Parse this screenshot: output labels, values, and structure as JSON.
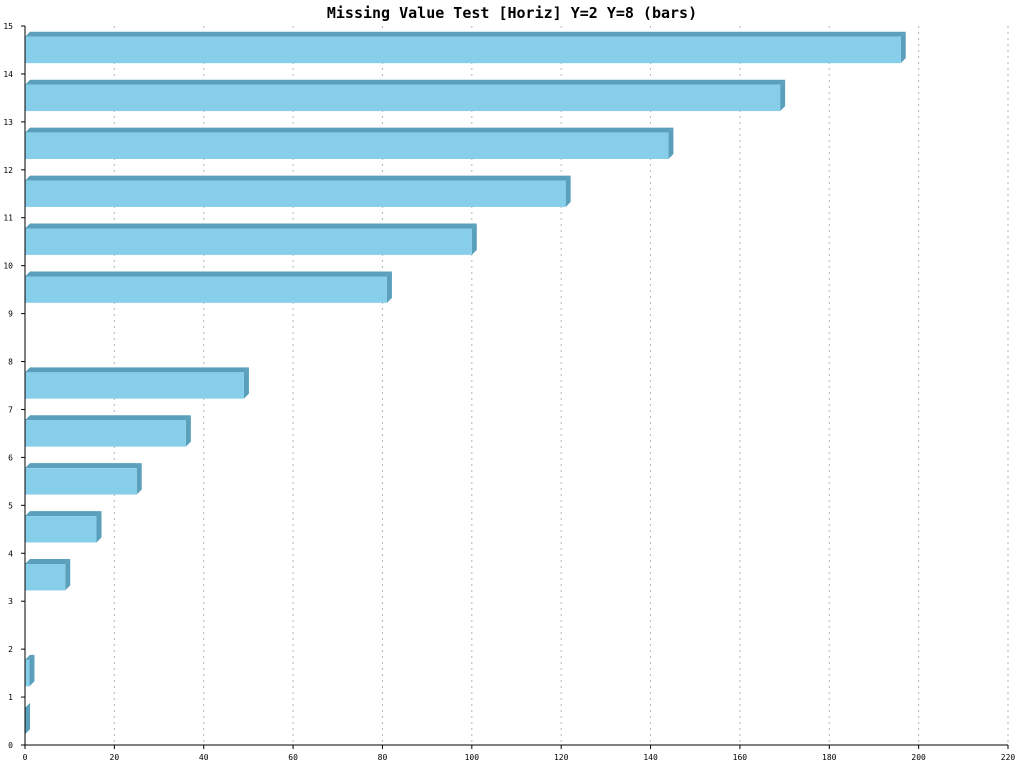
{
  "chart_data": {
    "type": "bar",
    "orientation": "horizontal",
    "title": "Missing Value Test [Horiz] Y=2 Y=8 (bars)",
    "xlabel": "",
    "ylabel": "",
    "xlim": [
      0,
      220
    ],
    "ylim": [
      0,
      15
    ],
    "xticks": [
      "0",
      "20",
      "40",
      "60",
      "80",
      "100",
      "120",
      "140",
      "160",
      "180",
      "200",
      "220"
    ],
    "yticks": [
      "0",
      "1",
      "2",
      "3",
      "4",
      "5",
      "6",
      "7",
      "8",
      "9",
      "10",
      "11",
      "12",
      "13",
      "14",
      "15"
    ],
    "grid": "vertical dotted",
    "categories": [
      0,
      1,
      2,
      3,
      4,
      5,
      6,
      7,
      8,
      9,
      10,
      11,
      12,
      13,
      14
    ],
    "values": [
      0,
      1,
      null,
      9,
      16,
      25,
      36,
      49,
      null,
      81,
      100,
      121,
      144,
      169,
      196
    ],
    "colors": {
      "bar": "#87ceeb",
      "bar_shade": "#5aa0bb"
    }
  }
}
